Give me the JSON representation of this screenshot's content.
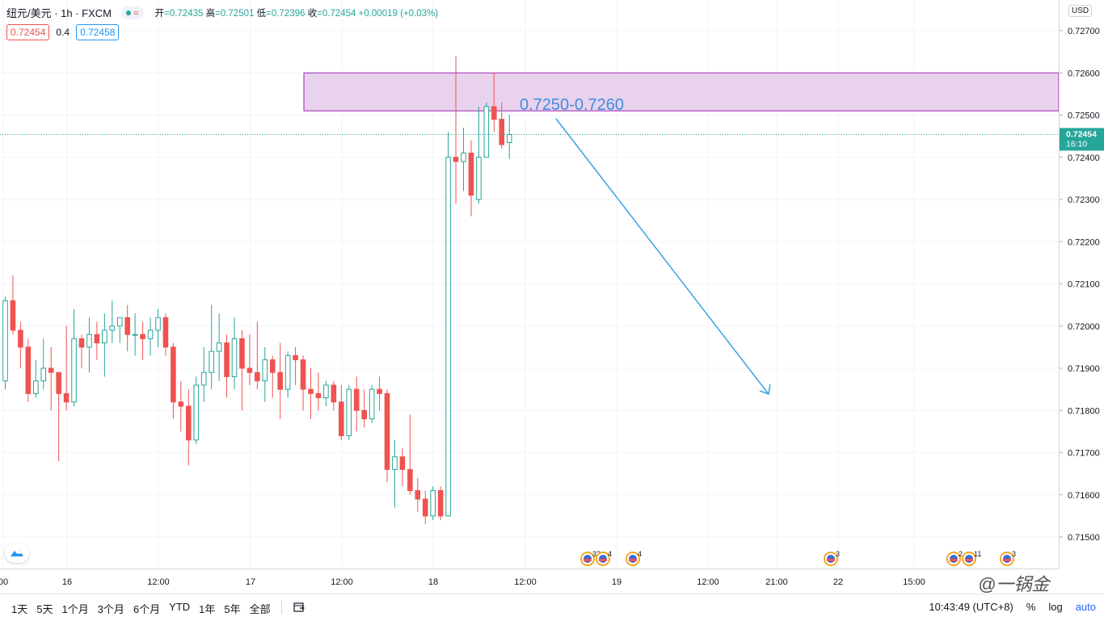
{
  "header": {
    "symbol": "纽元/美元 · 1h · FXCM",
    "status_wave": "≈",
    "ohlc": {
      "open_label": "开",
      "open": "=0.72435",
      "high_label": "高",
      "high": "=0.72501",
      "low_label": "低",
      "low": "=0.72396",
      "close_label": "收",
      "close": "=0.72454",
      "change": "+0.00019 (+0.03%)"
    },
    "sell_price": "0.72454",
    "spread": "0.4",
    "buy_price": "0.72458"
  },
  "currency_button": "USD",
  "current_price": {
    "value": "0.72454",
    "countdown": "16:10"
  },
  "price_axis_labels": [
    "0.72700",
    "0.72600",
    "0.72500",
    "0.72400",
    "0.72300",
    "0.72200",
    "0.72100",
    "0.72000",
    "0.71900",
    "0.71800",
    "0.71700",
    "0.71600",
    "0.71500"
  ],
  "time_axis_labels": [
    "00",
    "16",
    "12:00",
    "17",
    "12:00",
    "18",
    "12:00",
    "19",
    "12:00",
    "21:00",
    "22",
    "15:00"
  ],
  "event_markers": [
    {
      "count": "33"
    },
    {
      "count": "4"
    },
    {
      "count": "4"
    },
    {
      "count": "3"
    },
    {
      "count": "2"
    },
    {
      "count": "11"
    },
    {
      "count": "3"
    }
  ],
  "annotation": {
    "zone_label": "0.7250-0.7260",
    "zone_low": 0.7251,
    "zone_high": 0.726
  },
  "colors": {
    "up": "#26a69a",
    "down": "#ef5350",
    "zone_fill": "#e9d2ee",
    "zone_border": "#9c27b0",
    "arrow": "#3aa3e3",
    "zone_text": "#3b8ede"
  },
  "bottom_bar": {
    "ranges": [
      "1天",
      "5天",
      "1个月",
      "3个月",
      "6个月",
      "YTD",
      "1年",
      "5年",
      "全部"
    ],
    "time": "10:43:49 (UTC+8)",
    "percent": "%",
    "log": "log",
    "auto": "auto"
  },
  "watermark": "@一锅金",
  "chart_data": {
    "type": "candlestick",
    "title": "纽元/美元 · 1h · FXCM",
    "ylim": [
      0.7143,
      0.7277
    ],
    "grid": true,
    "candles": [
      [
        0.7187,
        0.7207,
        0.7185,
        0.7206
      ],
      [
        0.7206,
        0.7212,
        0.7198,
        0.7199
      ],
      [
        0.7199,
        0.7201,
        0.719,
        0.7195
      ],
      [
        0.7195,
        0.7197,
        0.7182,
        0.7184
      ],
      [
        0.7184,
        0.7192,
        0.7183,
        0.7187
      ],
      [
        0.7187,
        0.7197,
        0.7185,
        0.719
      ],
      [
        0.719,
        0.7195,
        0.718,
        0.7189
      ],
      [
        0.7189,
        0.7189,
        0.7168,
        0.7184
      ],
      [
        0.7184,
        0.72,
        0.718,
        0.7182
      ],
      [
        0.7182,
        0.7204,
        0.7181,
        0.7197
      ],
      [
        0.7197,
        0.7198,
        0.719,
        0.7195
      ],
      [
        0.7195,
        0.7202,
        0.7189,
        0.7198
      ],
      [
        0.7198,
        0.7201,
        0.7192,
        0.7196
      ],
      [
        0.7196,
        0.7203,
        0.7188,
        0.7199
      ],
      [
        0.7199,
        0.7206,
        0.7196,
        0.72
      ],
      [
        0.72,
        0.7202,
        0.7196,
        0.7202
      ],
      [
        0.7202,
        0.7205,
        0.7194,
        0.7198
      ],
      [
        0.7198,
        0.7203,
        0.7193,
        0.7198
      ],
      [
        0.7198,
        0.7201,
        0.7192,
        0.7197
      ],
      [
        0.7197,
        0.7202,
        0.7193,
        0.7199
      ],
      [
        0.7199,
        0.7204,
        0.7195,
        0.7202
      ],
      [
        0.7202,
        0.7203,
        0.7193,
        0.7195
      ],
      [
        0.7195,
        0.7196,
        0.7178,
        0.7182
      ],
      [
        0.7182,
        0.7187,
        0.7175,
        0.7181
      ],
      [
        0.7181,
        0.7185,
        0.7167,
        0.7173
      ],
      [
        0.7173,
        0.7188,
        0.7172,
        0.7186
      ],
      [
        0.7186,
        0.7195,
        0.7182,
        0.7189
      ],
      [
        0.7189,
        0.7205,
        0.7185,
        0.7194
      ],
      [
        0.7194,
        0.7203,
        0.7187,
        0.7196
      ],
      [
        0.7196,
        0.7198,
        0.7183,
        0.7188
      ],
      [
        0.7188,
        0.7202,
        0.7185,
        0.7197
      ],
      [
        0.7197,
        0.7199,
        0.718,
        0.719
      ],
      [
        0.719,
        0.7198,
        0.7186,
        0.7189
      ],
      [
        0.7189,
        0.7201,
        0.7185,
        0.7187
      ],
      [
        0.7187,
        0.7195,
        0.7182,
        0.7192
      ],
      [
        0.7192,
        0.7193,
        0.7183,
        0.7189
      ],
      [
        0.7189,
        0.7196,
        0.7178,
        0.7185
      ],
      [
        0.7185,
        0.7194,
        0.7183,
        0.7193
      ],
      [
        0.7193,
        0.7195,
        0.7186,
        0.7192
      ],
      [
        0.7192,
        0.7193,
        0.718,
        0.7185
      ],
      [
        0.7185,
        0.719,
        0.7178,
        0.7184
      ],
      [
        0.7184,
        0.7189,
        0.718,
        0.7183
      ],
      [
        0.7183,
        0.7187,
        0.7181,
        0.7186
      ],
      [
        0.7186,
        0.7187,
        0.718,
        0.7182
      ],
      [
        0.7182,
        0.7186,
        0.7173,
        0.7174
      ],
      [
        0.7174,
        0.7186,
        0.7173,
        0.7185
      ],
      [
        0.7185,
        0.7188,
        0.7175,
        0.718
      ],
      [
        0.718,
        0.7185,
        0.7176,
        0.7178
      ],
      [
        0.7178,
        0.7186,
        0.7177,
        0.7185
      ],
      [
        0.7185,
        0.7188,
        0.718,
        0.7184
      ],
      [
        0.7184,
        0.7185,
        0.7163,
        0.7166
      ],
      [
        0.7166,
        0.7173,
        0.7157,
        0.7169
      ],
      [
        0.7169,
        0.7171,
        0.7162,
        0.7166
      ],
      [
        0.7166,
        0.7179,
        0.716,
        0.7161
      ],
      [
        0.7161,
        0.7164,
        0.7156,
        0.7159
      ],
      [
        0.7159,
        0.7161,
        0.7153,
        0.7155
      ],
      [
        0.7155,
        0.7162,
        0.7154,
        0.7161
      ],
      [
        0.7161,
        0.7162,
        0.7154,
        0.7155
      ],
      [
        0.7155,
        0.7246,
        0.7155,
        0.724
      ],
      [
        0.724,
        0.7264,
        0.7229,
        0.7239
      ],
      [
        0.7239,
        0.7247,
        0.7232,
        0.7241
      ],
      [
        0.7241,
        0.7244,
        0.7226,
        0.7231
      ],
      [
        0.723,
        0.7252,
        0.7229,
        0.724
      ],
      [
        0.724,
        0.7253,
        0.724,
        0.7252
      ],
      [
        0.7252,
        0.726,
        0.7246,
        0.7249
      ],
      [
        0.7249,
        0.7253,
        0.7242,
        0.7243
      ],
      [
        0.72435,
        0.72501,
        0.72396,
        0.72454
      ]
    ]
  }
}
